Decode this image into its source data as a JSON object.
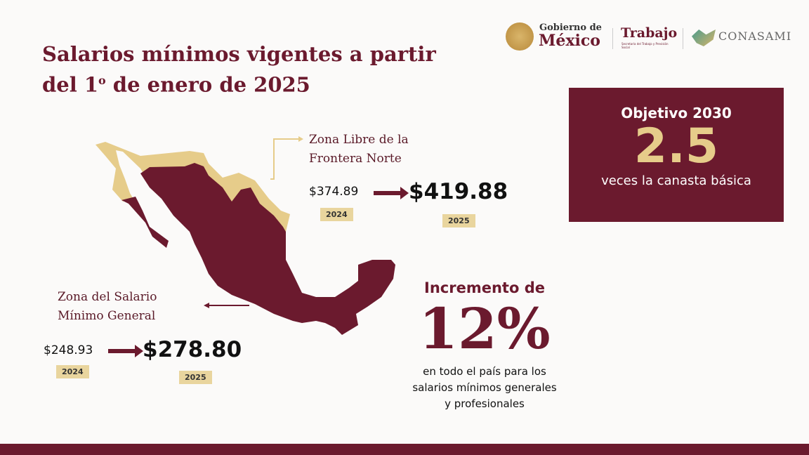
{
  "header": {
    "title_line1": "Salarios mínimos vigentes a partir",
    "title_line2_a": "del 1",
    "title_sup": "o",
    "title_line2_b": " de enero de 2025"
  },
  "logos": {
    "gobierno_top": "Gobierno de",
    "gobierno_bottom": "México",
    "trabajo": "Trabajo",
    "trabajo_sub": "Secretaría del Trabajo y Previsión Social",
    "conasami": "CONASAMI"
  },
  "frontera": {
    "label_line1": "Zona Libre de la",
    "label_line2": "Frontera Norte",
    "old_value": "$374.89",
    "old_year": "2024",
    "new_value": "$419.88",
    "new_year": "2025"
  },
  "general": {
    "label_line1": "Zona del Salario",
    "label_line2": "Mínimo General",
    "old_value": "$248.93",
    "old_year": "2024",
    "new_value": "$278.80",
    "new_year": "2025"
  },
  "goal": {
    "title": "Objetivo 2030",
    "value": "2.5",
    "caption": "veces la canasta básica"
  },
  "increase": {
    "title": "Incremento de",
    "value": "12%",
    "line1": "en todo el país para los",
    "line2": "salarios mínimos generales",
    "line3": "y profesionales"
  },
  "colors": {
    "maroon": "#6b1a2e",
    "beige": "#e9d59e",
    "gold": "#e6cc8a"
  }
}
